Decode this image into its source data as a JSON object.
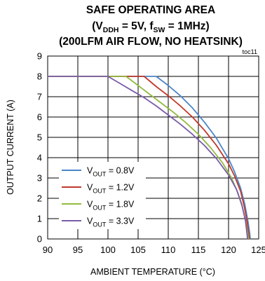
{
  "chart_data": {
    "type": "line",
    "title": "SAFE OPERATING AREA",
    "subtitle_parts": {
      "open": "(V",
      "sub1": "DDH",
      "mid": " = 5V, f",
      "sub2": "SW",
      "close": " = 1MHz)"
    },
    "subtitle2": "(200LFM AIR FLOW, NO HEATSINK)",
    "tag": "toc11",
    "xlabel": "AMBIENT TEMPERATURE (°C)",
    "ylabel": "OUTPUT CURRENT (A)",
    "xlim": [
      90,
      125
    ],
    "ylim": [
      0,
      9
    ],
    "xticks": [
      "90",
      "95",
      "100",
      "105",
      "110",
      "115",
      "120",
      "125"
    ],
    "yticks": [
      "0",
      "1",
      "2",
      "3",
      "4",
      "5",
      "6",
      "7",
      "8",
      "9"
    ],
    "grid": true,
    "legend_position": "bottom-left",
    "series": [
      {
        "label_main": "V",
        "label_sub": "OUT",
        "label_rest": " = 0.8V",
        "color": "#4a86c8",
        "x": [
          90,
          108,
          110,
          112,
          114,
          116,
          118,
          120,
          121,
          122,
          122.7,
          123.2,
          123.5,
          123.6
        ],
        "y": [
          8,
          8,
          7.55,
          7.05,
          6.45,
          5.75,
          4.95,
          3.95,
          3.3,
          2.5,
          1.7,
          0.9,
          0.3,
          0
        ]
      },
      {
        "label_main": "V",
        "label_sub": "OUT",
        "label_rest": " = 1.2V",
        "color": "#c0392b",
        "x": [
          90,
          106,
          108,
          110,
          112,
          114,
          116,
          118,
          120,
          121,
          122,
          122.6,
          123.1,
          123.35,
          123.45
        ],
        "y": [
          8,
          8,
          7.5,
          7.05,
          6.55,
          6,
          5.35,
          4.6,
          3.7,
          3.1,
          2.35,
          1.6,
          0.8,
          0.25,
          0
        ]
      },
      {
        "label_main": "V",
        "label_sub": "OUT",
        "label_rest": " = 1.8V",
        "color": "#92bb3f",
        "x": [
          90,
          103,
          105,
          107,
          109,
          111,
          113,
          115,
          117,
          119,
          120.5,
          121.5,
          122.3,
          122.9,
          123.2,
          123.3
        ],
        "y": [
          8,
          8,
          7.55,
          7.1,
          6.65,
          6.2,
          5.7,
          5.15,
          4.5,
          3.75,
          3.0,
          2.3,
          1.55,
          0.8,
          0.25,
          0
        ]
      },
      {
        "label_main": "V",
        "label_sub": "OUT",
        "label_rest": " = 3.3V",
        "color": "#7a5ba8",
        "x": [
          90,
          100,
          102,
          104,
          106,
          108,
          110,
          112,
          114,
          116,
          118,
          120,
          121.3,
          122.2,
          122.8,
          123.05,
          123.15
        ],
        "y": [
          8,
          8,
          7.65,
          7.3,
          6.95,
          6.55,
          6.1,
          5.65,
          5.15,
          4.6,
          3.95,
          3.15,
          2.45,
          1.7,
          0.9,
          0.3,
          0
        ]
      }
    ]
  }
}
